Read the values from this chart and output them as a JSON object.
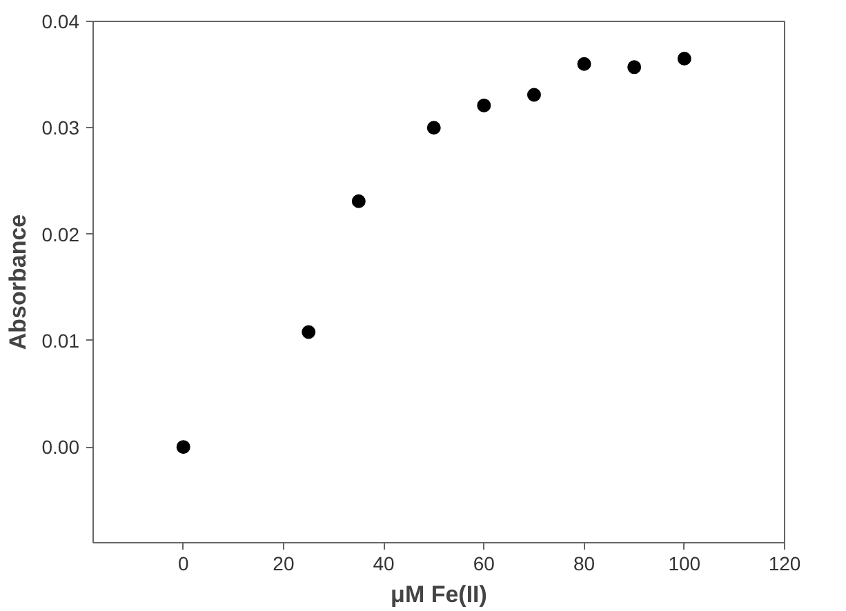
{
  "chart_data": {
    "type": "scatter",
    "xlabel": "μM Fe(II)",
    "ylabel": "Absorbance",
    "x": [
      0,
      25,
      35,
      50,
      60,
      70,
      80,
      90,
      100
    ],
    "series": [
      {
        "color": "#000000",
        "values": [
          0.0,
          0.0108,
          0.0231,
          0.03,
          0.0321,
          0.0331,
          0.036,
          0.0357,
          0.0365
        ]
      }
    ],
    "xlim": [
      -18,
      120
    ],
    "ylim": [
      -0.009,
      0.04
    ],
    "xticks": [
      0,
      20,
      40,
      60,
      80,
      100,
      120
    ],
    "yticks": [
      {
        "value": 0,
        "label": "0.00"
      },
      {
        "value": 0.01,
        "label": "0.01"
      },
      {
        "value": 0.02,
        "label": "0.02"
      },
      {
        "value": 0.03,
        "label": "0.03"
      },
      {
        "value": 0.04,
        "label": "0.04"
      }
    ],
    "marker": "circle",
    "grid": false
  }
}
